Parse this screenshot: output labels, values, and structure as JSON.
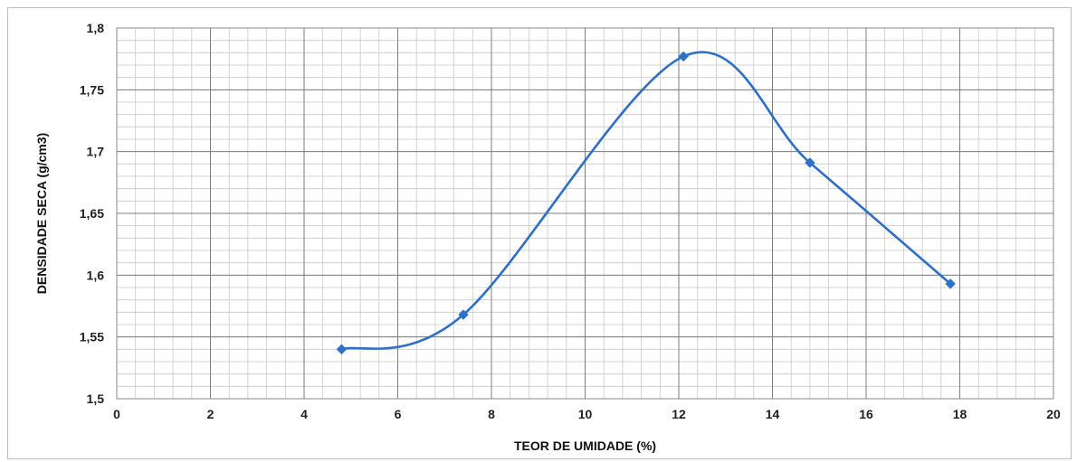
{
  "chart_data": {
    "type": "line",
    "xlabel": "TEOR DE UMIDADE (%)",
    "ylabel": "DENSIDADE SECA (g/cm3)",
    "xlim": [
      0,
      20
    ],
    "ylim": [
      1.5,
      1.8
    ],
    "x_ticks": [
      0,
      2,
      4,
      6,
      8,
      10,
      12,
      14,
      16,
      18,
      20
    ],
    "x_tick_labels": [
      "0",
      "2",
      "4",
      "6",
      "8",
      "10",
      "12",
      "14",
      "16",
      "18",
      "20"
    ],
    "y_ticks": [
      1.5,
      1.55,
      1.6,
      1.65,
      1.7,
      1.75,
      1.8
    ],
    "y_tick_labels": [
      "1,5",
      "1,55",
      "1,6",
      "1,65",
      "1,7",
      "1,75",
      "1,8"
    ],
    "grid": true,
    "minor_grid": true,
    "smooth": true,
    "series": [
      {
        "color": "#2e6fc9",
        "marker": "diamond",
        "x": [
          4.8,
          7.4,
          12.1,
          14.8,
          17.8
        ],
        "y": [
          1.54,
          1.568,
          1.777,
          1.691,
          1.593
        ]
      }
    ]
  }
}
